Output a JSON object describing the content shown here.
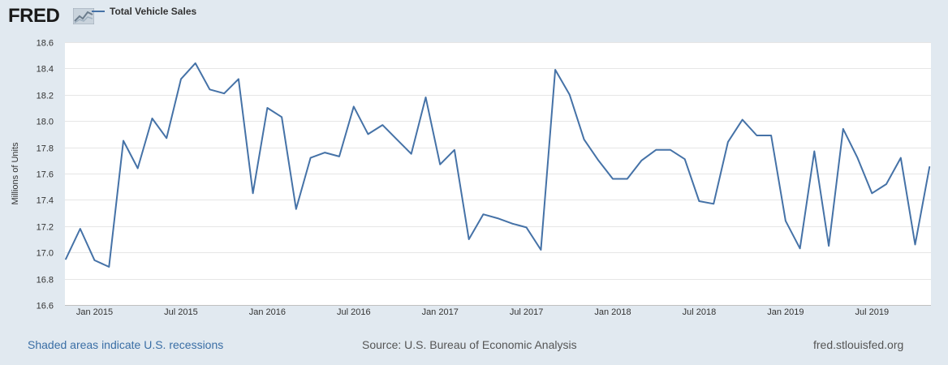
{
  "header": {
    "logo_text": "FRED",
    "logo_icon": "fred-chart-icon",
    "legend_label": "Total Vehicle Sales"
  },
  "colors": {
    "background": "#e1e9f0",
    "plot_background": "#ffffff",
    "series": "#4572a7",
    "grid": "#e6e6e6",
    "link": "#3a6ea5"
  },
  "chart_data": {
    "type": "line",
    "title": "",
    "xlabel": "",
    "ylabel": "Millions of Units",
    "ylim": [
      16.6,
      18.6
    ],
    "yticks": [
      "16.6",
      "16.8",
      "17.0",
      "17.2",
      "17.4",
      "17.6",
      "17.8",
      "18.0",
      "18.2",
      "18.4",
      "18.6"
    ],
    "x_range": [
      "2014-11",
      "2019-11"
    ],
    "xticks": [
      {
        "label": "Jan 2015",
        "date": "2015-01"
      },
      {
        "label": "Jul 2015",
        "date": "2015-07"
      },
      {
        "label": "Jan 2016",
        "date": "2016-01"
      },
      {
        "label": "Jul 2016",
        "date": "2016-07"
      },
      {
        "label": "Jan 2017",
        "date": "2017-01"
      },
      {
        "label": "Jul 2017",
        "date": "2017-07"
      },
      {
        "label": "Jan 2018",
        "date": "2018-01"
      },
      {
        "label": "Jul 2018",
        "date": "2018-07"
      },
      {
        "label": "Jan 2019",
        "date": "2019-01"
      },
      {
        "label": "Jul 2019",
        "date": "2019-07"
      }
    ],
    "grid": true,
    "legend": "top-left",
    "series": [
      {
        "name": "Total Vehicle Sales",
        "x": [
          "2014-11",
          "2014-12",
          "2015-01",
          "2015-02",
          "2015-03",
          "2015-04",
          "2015-05",
          "2015-06",
          "2015-07",
          "2015-08",
          "2015-09",
          "2015-10",
          "2015-11",
          "2015-12",
          "2016-01",
          "2016-02",
          "2016-03",
          "2016-04",
          "2016-05",
          "2016-06",
          "2016-07",
          "2016-08",
          "2016-09",
          "2016-10",
          "2016-11",
          "2016-12",
          "2017-01",
          "2017-02",
          "2017-03",
          "2017-04",
          "2017-05",
          "2017-06",
          "2017-07",
          "2017-08",
          "2017-09",
          "2017-10",
          "2017-11",
          "2017-12",
          "2018-01",
          "2018-02",
          "2018-03",
          "2018-04",
          "2018-05",
          "2018-06",
          "2018-07",
          "2018-08",
          "2018-09",
          "2018-10",
          "2018-11",
          "2018-12",
          "2019-01",
          "2019-02",
          "2019-03",
          "2019-04",
          "2019-05",
          "2019-06",
          "2019-07",
          "2019-08",
          "2019-09",
          "2019-10",
          "2019-11"
        ],
        "values": [
          16.95,
          17.18,
          16.94,
          16.89,
          17.85,
          17.64,
          18.02,
          17.87,
          18.32,
          18.44,
          18.24,
          18.21,
          18.32,
          17.45,
          18.1,
          18.03,
          17.33,
          17.72,
          17.76,
          17.73,
          18.11,
          17.9,
          17.97,
          17.86,
          17.75,
          18.18,
          17.67,
          17.78,
          17.1,
          17.29,
          17.26,
          17.22,
          17.19,
          17.02,
          18.39,
          18.2,
          17.86,
          17.7,
          17.56,
          17.56,
          17.7,
          17.78,
          17.78,
          17.71,
          17.39,
          17.37,
          17.84,
          18.01,
          17.89,
          17.89,
          17.24,
          17.03,
          17.77,
          17.05,
          17.94,
          17.72,
          17.45,
          17.52,
          17.72,
          17.06,
          17.65
        ]
      }
    ]
  },
  "footer": {
    "recessions_note": "Shaded areas indicate U.S. recessions",
    "source": "Source: U.S. Bureau of Economic Analysis",
    "site": "fred.stlouisfed.org"
  }
}
